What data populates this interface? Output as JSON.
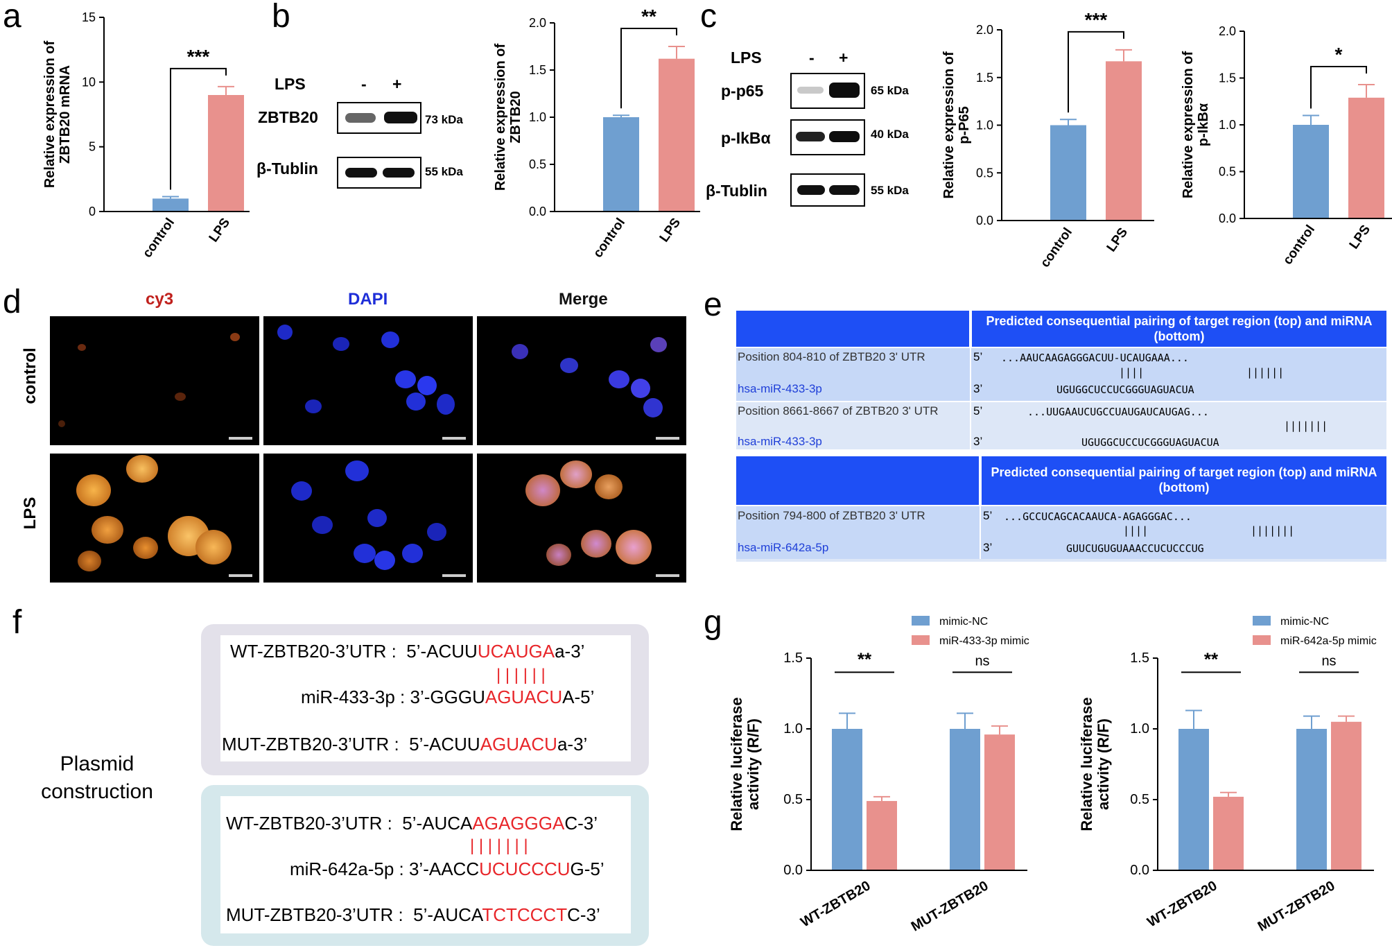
{
  "panel_labels": {
    "a": "a",
    "b": "b",
    "c": "c",
    "d": "d",
    "e": "e",
    "f": "f",
    "g": "g"
  },
  "colors": {
    "control": "#6f9fd0",
    "lps": "#e8918d",
    "table_header": "#1e4ff5",
    "table_row_light": "#c6d8f7",
    "table_row_lighter": "#dde7f7",
    "mirna_link": "#1f3fd8",
    "red_seq": "#e8262a",
    "box_purple": "#e3e1ea",
    "box_blue": "#d5e8ec"
  },
  "blot_b": {
    "lps_label": "LPS",
    "minus": "-",
    "plus": "+",
    "rows": [
      {
        "label": "ZBTB20",
        "kda": "73 kDa"
      },
      {
        "label": "β-Tublin",
        "kda": "55 kDa"
      }
    ]
  },
  "blot_c": {
    "lps_label": "LPS",
    "minus": "-",
    "plus": "+",
    "rows": [
      {
        "label": "p-p65",
        "kda": "65 kDa"
      },
      {
        "label": "p-IkBα",
        "kda": "40 kDa"
      },
      {
        "label": "β-Tublin",
        "kda": "55 kDa"
      }
    ]
  },
  "panel_d": {
    "col_labels": [
      "cy3",
      "DAPI",
      "Merge"
    ],
    "row_labels": [
      "control",
      "LPS"
    ],
    "col_colors": [
      "#c0201c",
      "#1e2ed8",
      "#111111"
    ]
  },
  "panel_e": {
    "tables": [
      {
        "header": "Predicted consequential pairing of target region (top) and miRNA (bottom)",
        "rows": [
          {
            "position": "Position 804-810 of ZBTB20 3' UTR",
            "mirna": "hsa-miR-433-3p",
            "five": "5’",
            "three": "3’",
            "top": "...AAUCAAGAGGGACUU-UCAUGAAA...",
            "bars1": "||||",
            "bars2": "||||||",
            "bottom": "UGUGGCUCCUCGGGUAGUACUA"
          },
          {
            "position": "Position 8661-8667 of ZBTB20 3' UTR",
            "mirna": "hsa-miR-433-3p",
            "five": "5’",
            "three": "3’",
            "top": "...UUGAAUCUGCCUAUGAUCAUGAG...",
            "bars1": "",
            "bars2": "|||||||",
            "bottom": "UGUGGCUCCUCGGGUAGUACUA"
          }
        ]
      },
      {
        "header": "Predicted consequential pairing of target region (top) and miRNA (bottom)",
        "rows": [
          {
            "position": "Position 794-800 of ZBTB20 3' UTR",
            "mirna": "hsa-miR-642a-5p",
            "five": "5’",
            "three": "3’",
            "top": "...GCCUCAGCACAAUCA-AGAGGGAC...",
            "bars1": "||||",
            "bars2": "|||||||",
            "bottom": "GUUCUGUGUAAACCUCUCCCUG"
          }
        ]
      }
    ]
  },
  "panel_f": {
    "side_label_1": "Plasmid",
    "side_label_2": "construction",
    "box1": {
      "wt_label": "WT-ZBTB20-3’UTR :",
      "wt_pre": "5’-ACUU",
      "wt_red": "UCAUGA",
      "wt_post": "a-3’",
      "bars": "| | | | | |",
      "mir_label": "miR-433-3p :",
      "mir_pre": "3’-GGGU",
      "mir_red": "AGUACU",
      "mir_post": "A-5’",
      "mut_label": "MUT-ZBTB20-3’UTR :",
      "mut_pre": "5’-ACUU",
      "mut_red": "AGUACU",
      "mut_post": "a-3’"
    },
    "box2": {
      "wt_label": "WT-ZBTB20-3’UTR :",
      "wt_pre": "5’-AUCA",
      "wt_red": "AGAGGGA",
      "wt_post": "C-3’",
      "bars": "| | | | | | |",
      "mir_label": "miR-642a-5p :",
      "mir_pre": "3’-AACC",
      "mir_red": "UCUCCCU",
      "mir_post": "G-5’",
      "mut_label": "MUT-ZBTB20-3’UTR :",
      "mut_pre": "5’-AUCA",
      "mut_red": "TCTCCCT",
      "mut_post": "C-3’"
    }
  },
  "chart_data": [
    {
      "id": "a",
      "type": "bar",
      "categories": [
        "control",
        "LPS"
      ],
      "values": [
        1.0,
        9.0
      ],
      "errors": [
        0.15,
        0.65
      ],
      "ylabel": "Relative expression of ZBTB20 mRNA",
      "ylim": [
        0,
        15
      ],
      "ticks": [
        0,
        5,
        10,
        15
      ],
      "tick_labels": [
        "0",
        "5",
        "10",
        "15"
      ],
      "significance": [
        {
          "from": 0,
          "to": 1,
          "label": "***"
        }
      ]
    },
    {
      "id": "b",
      "type": "bar",
      "categories": [
        "control",
        "LPS"
      ],
      "values": [
        1.0,
        1.62
      ],
      "errors": [
        0.02,
        0.13
      ],
      "ylabel": "Relative expression of ZBTB20",
      "ylim": [
        0,
        2.0
      ],
      "ticks": [
        0,
        0.5,
        1.0,
        1.5,
        2.0
      ],
      "tick_labels": [
        "0.0",
        "0.5",
        "1.0",
        "1.5",
        "2.0"
      ],
      "significance": [
        {
          "from": 0,
          "to": 1,
          "label": "**"
        }
      ]
    },
    {
      "id": "c1",
      "type": "bar",
      "categories": [
        "control",
        "LPS"
      ],
      "values": [
        1.0,
        1.67
      ],
      "errors": [
        0.06,
        0.12
      ],
      "ylabel": "Relative expression of p-P65",
      "ylim": [
        0,
        2.0
      ],
      "ticks": [
        0,
        0.5,
        1.0,
        1.5,
        2.0
      ],
      "tick_labels": [
        "0.0",
        "0.5",
        "1.0",
        "1.5",
        "2.0"
      ],
      "significance": [
        {
          "from": 0,
          "to": 1,
          "label": "***"
        }
      ]
    },
    {
      "id": "c2",
      "type": "bar",
      "categories": [
        "control",
        "LPS"
      ],
      "values": [
        1.0,
        1.29
      ],
      "errors": [
        0.1,
        0.14
      ],
      "ylabel": "Relative expression of p-IkBα",
      "ylim": [
        0,
        2.0
      ],
      "ticks": [
        0,
        0.5,
        1.0,
        1.5,
        2.0
      ],
      "tick_labels": [
        "0.0",
        "0.5",
        "1.0",
        "1.5",
        "2.0"
      ],
      "significance": [
        {
          "from": 0,
          "to": 1,
          "label": "*"
        }
      ]
    },
    {
      "id": "g1",
      "type": "bar",
      "categories": [
        "WT-ZBTB20",
        "MUT-ZBTB20"
      ],
      "series": [
        {
          "name": "mimic-NC",
          "values": [
            1.0,
            1.0
          ],
          "errors": [
            0.11,
            0.11
          ]
        },
        {
          "name": "miR-433-3p mimic",
          "values": [
            0.49,
            0.96
          ],
          "errors": [
            0.03,
            0.06
          ]
        }
      ],
      "ylabel": "Relative luciferase activity (R/F)",
      "ylim": [
        0,
        1.5
      ],
      "ticks": [
        0,
        0.5,
        1.0,
        1.5
      ],
      "tick_labels": [
        "0.0",
        "0.5",
        "1.0",
        "1.5"
      ],
      "legend": "top-right",
      "significance": [
        {
          "group": 0,
          "label": "**"
        },
        {
          "group": 1,
          "label": "ns"
        }
      ]
    },
    {
      "id": "g2",
      "type": "bar",
      "categories": [
        "WT-ZBTB20",
        "MUT-ZBTB20"
      ],
      "series": [
        {
          "name": "mimic-NC",
          "values": [
            1.0,
            1.0
          ],
          "errors": [
            0.13,
            0.09
          ]
        },
        {
          "name": "miR-642a-5p mimic",
          "values": [
            0.52,
            1.05
          ],
          "errors": [
            0.03,
            0.04
          ]
        }
      ],
      "ylabel": "Relative luciferase activity (R/F)",
      "ylim": [
        0,
        1.5
      ],
      "ticks": [
        0,
        0.5,
        1.0,
        1.5
      ],
      "tick_labels": [
        "0.0",
        "0.5",
        "1.0",
        "1.5"
      ],
      "legend": "top-right",
      "significance": [
        {
          "group": 0,
          "label": "**"
        },
        {
          "group": 1,
          "label": "ns"
        }
      ]
    }
  ]
}
